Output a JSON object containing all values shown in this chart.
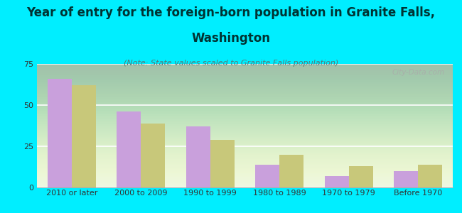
{
  "title_line1": "Year of entry for the foreign-born population in Granite Falls,",
  "title_line2": "Washington",
  "subtitle": "(Note: State values scaled to Granite Falls population)",
  "categories": [
    "2010 or later",
    "2000 to 2009",
    "1990 to 1999",
    "1980 to 1989",
    "1970 to 1979",
    "Before 1970"
  ],
  "granite_falls": [
    66,
    46,
    37,
    14,
    7,
    10
  ],
  "washington": [
    62,
    39,
    29,
    20,
    13,
    14
  ],
  "granite_color": "#c9a0dc",
  "washington_color": "#c8c87a",
  "background_color": "#00eeff",
  "plot_bg_color": "#e8f5e0",
  "ylim": [
    0,
    75
  ],
  "yticks": [
    0,
    25,
    50,
    75
  ],
  "bar_width": 0.35,
  "title_fontsize": 12,
  "subtitle_fontsize": 8,
  "tick_fontsize": 8,
  "legend_fontsize": 9,
  "title_color": "#003333",
  "subtitle_color": "#557777",
  "watermark": "City-Data.com"
}
